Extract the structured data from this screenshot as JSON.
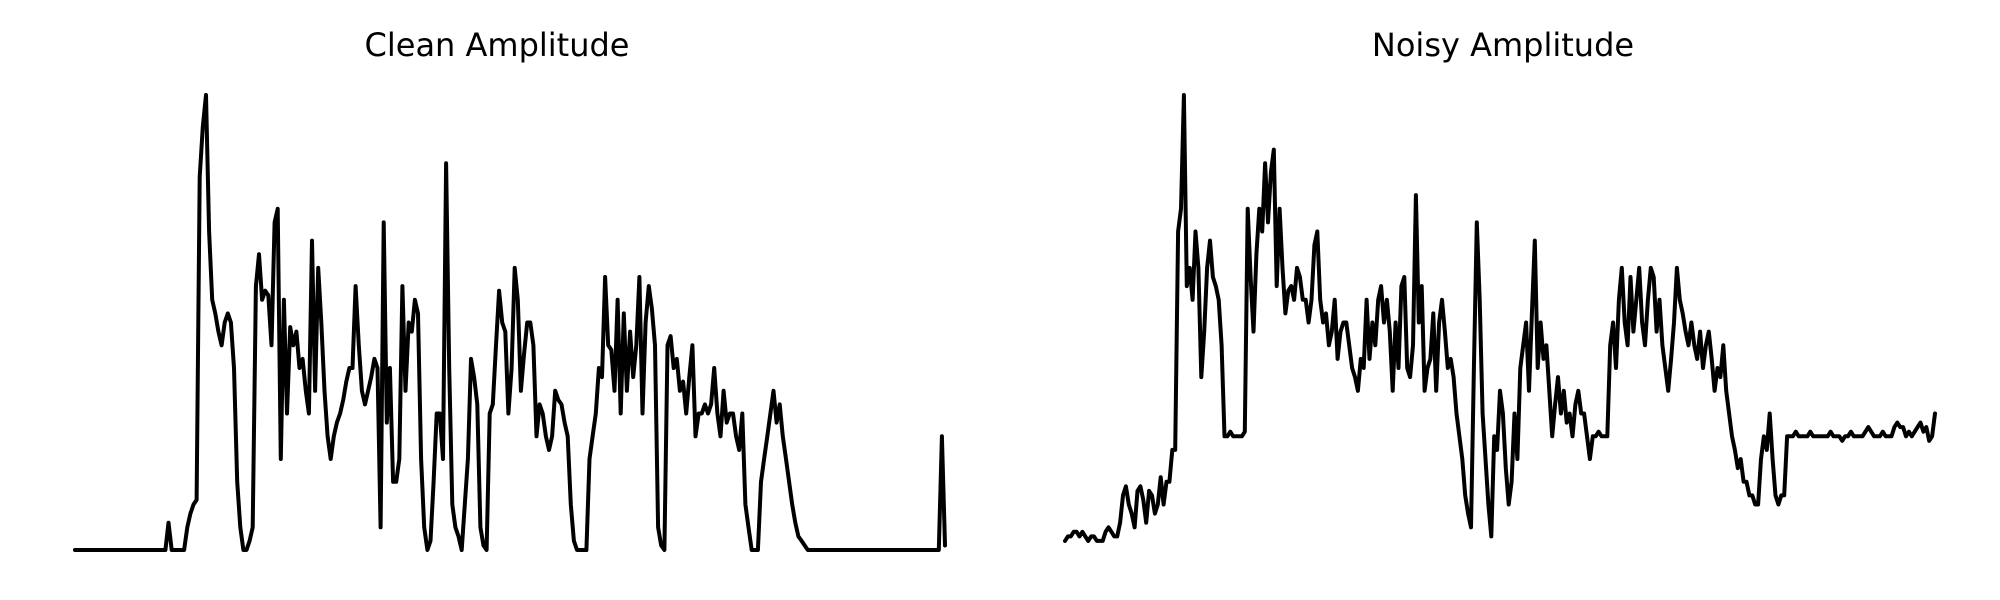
{
  "chart_data": [
    {
      "type": "line",
      "title": "Clean Amplitude",
      "xlabel": "",
      "ylabel": "",
      "axes_visible": false,
      "grid": false,
      "color": "#000000",
      "ylim": [
        0,
        1.0
      ],
      "x_step": 1,
      "series": [
        {
          "values": [
            0,
            0,
            0,
            0,
            0,
            0,
            0,
            0,
            0,
            0,
            0,
            0,
            0,
            0,
            0,
            0,
            0,
            0,
            0,
            0,
            0,
            0,
            0,
            0,
            0,
            0,
            0,
            0,
            0,
            0,
            0.06,
            0,
            0,
            0,
            0,
            0,
            0.05,
            0.08,
            0.1,
            0.11,
            0.82,
            0.93,
            1.0,
            0.7,
            0.55,
            0.52,
            0.48,
            0.45,
            0.5,
            0.52,
            0.5,
            0.4,
            0.15,
            0.05,
            0,
            0,
            0.02,
            0.05,
            0.58,
            0.65,
            0.55,
            0.57,
            0.56,
            0.45,
            0.72,
            0.75,
            0.2,
            0.55,
            0.3,
            0.49,
            0.45,
            0.48,
            0.4,
            0.42,
            0.35,
            0.3,
            0.68,
            0.35,
            0.62,
            0.5,
            0.35,
            0.25,
            0.2,
            0.25,
            0.28,
            0.3,
            0.33,
            0.37,
            0.4,
            0.4,
            0.58,
            0.45,
            0.35,
            0.32,
            0.35,
            0.38,
            0.42,
            0.4,
            0.05,
            0.72,
            0.28,
            0.4,
            0.15,
            0.15,
            0.2,
            0.58,
            0.35,
            0.5,
            0.48,
            0.55,
            0.52,
            0.2,
            0.05,
            0,
            0.02,
            0.15,
            0.3,
            0.3,
            0.2,
            0.85,
            0.4,
            0.1,
            0.05,
            0.03,
            0,
            0.1,
            0.2,
            0.42,
            0.38,
            0.32,
            0.05,
            0.01,
            0,
            0.3,
            0.32,
            0.45,
            0.57,
            0.5,
            0.48,
            0.3,
            0.4,
            0.62,
            0.55,
            0.35,
            0.43,
            0.5,
            0.5,
            0.45,
            0.25,
            0.32,
            0.3,
            0.25,
            0.22,
            0.25,
            0.35,
            0.33,
            0.32,
            0.28,
            0.25,
            0.1,
            0.02,
            0,
            0,
            0,
            0,
            0.2,
            0.25,
            0.3,
            0.4,
            0.38,
            0.6,
            0.45,
            0.44,
            0.35,
            0.55,
            0.3,
            0.52,
            0.35,
            0.48,
            0.38,
            0.45,
            0.6,
            0.3,
            0.5,
            0.58,
            0.53,
            0.45,
            0.05,
            0.01,
            0,
            0.45,
            0.47,
            0.4,
            0.42,
            0.35,
            0.37,
            0.3,
            0.38,
            0.45,
            0.25,
            0.3,
            0.3,
            0.32,
            0.3,
            0.32,
            0.4,
            0.3,
            0.25,
            0.35,
            0.28,
            0.3,
            0.3,
            0.25,
            0.22,
            0.3,
            0.1,
            0.05,
            0,
            0,
            0,
            0.15,
            0.2,
            0.25,
            0.3,
            0.35,
            0.28,
            0.32,
            0.25,
            0.2,
            0.15,
            0.1,
            0.06,
            0.03,
            0.02,
            0.01,
            0,
            0,
            0,
            0,
            0,
            0,
            0,
            0,
            0,
            0,
            0,
            0,
            0,
            0,
            0,
            0,
            0,
            0,
            0,
            0,
            0,
            0,
            0,
            0,
            0,
            0,
            0,
            0,
            0,
            0,
            0,
            0,
            0,
            0,
            0,
            0,
            0,
            0,
            0,
            0,
            0,
            0,
            0,
            0.25,
            0.01
          ]
        }
      ]
    },
    {
      "type": "line",
      "title": "Noisy Amplitude",
      "xlabel": "",
      "ylabel": "",
      "axes_visible": false,
      "grid": false,
      "color": "#000000",
      "ylim": [
        0,
        1.0
      ],
      "x_step": 1,
      "series": [
        {
          "values": [
            0.02,
            0.03,
            0.03,
            0.04,
            0.04,
            0.03,
            0.04,
            0.03,
            0.02,
            0.03,
            0.03,
            0.02,
            0.02,
            0.02,
            0.04,
            0.05,
            0.04,
            0.03,
            0.03,
            0.06,
            0.12,
            0.14,
            0.1,
            0.08,
            0.05,
            0.13,
            0.14,
            0.11,
            0.06,
            0.13,
            0.12,
            0.08,
            0.1,
            0.16,
            0.1,
            0.15,
            0.15,
            0.22,
            0.22,
            0.7,
            0.75,
            1.0,
            0.58,
            0.62,
            0.55,
            0.7,
            0.62,
            0.38,
            0.48,
            0.62,
            0.68,
            0.6,
            0.58,
            0.55,
            0.45,
            0.25,
            0.25,
            0.26,
            0.25,
            0.25,
            0.25,
            0.25,
            0.26,
            0.75,
            0.6,
            0.48,
            0.65,
            0.75,
            0.7,
            0.85,
            0.72,
            0.83,
            0.88,
            0.58,
            0.75,
            0.62,
            0.52,
            0.57,
            0.58,
            0.55,
            0.62,
            0.6,
            0.55,
            0.55,
            0.5,
            0.55,
            0.67,
            0.7,
            0.55,
            0.5,
            0.52,
            0.45,
            0.48,
            0.55,
            0.42,
            0.48,
            0.5,
            0.5,
            0.45,
            0.4,
            0.38,
            0.35,
            0.42,
            0.4,
            0.55,
            0.42,
            0.5,
            0.45,
            0.55,
            0.58,
            0.5,
            0.55,
            0.48,
            0.35,
            0.5,
            0.4,
            0.58,
            0.6,
            0.4,
            0.38,
            0.45,
            0.78,
            0.5,
            0.58,
            0.35,
            0.4,
            0.42,
            0.52,
            0.35,
            0.5,
            0.55,
            0.48,
            0.4,
            0.42,
            0.38,
            0.3,
            0.25,
            0.2,
            0.12,
            0.08,
            0.05,
            0.4,
            0.72,
            0.55,
            0.3,
            0.2,
            0.1,
            0.03,
            0.25,
            0.22,
            0.35,
            0.3,
            0.18,
            0.1,
            0.15,
            0.3,
            0.2,
            0.4,
            0.45,
            0.5,
            0.35,
            0.52,
            0.68,
            0.4,
            0.5,
            0.42,
            0.45,
            0.35,
            0.25,
            0.32,
            0.38,
            0.3,
            0.35,
            0.28,
            0.3,
            0.25,
            0.32,
            0.35,
            0.3,
            0.3,
            0.25,
            0.2,
            0.25,
            0.25,
            0.26,
            0.25,
            0.25,
            0.25,
            0.45,
            0.5,
            0.4,
            0.55,
            0.62,
            0.5,
            0.45,
            0.6,
            0.48,
            0.55,
            0.62,
            0.5,
            0.45,
            0.55,
            0.62,
            0.6,
            0.48,
            0.55,
            0.45,
            0.4,
            0.35,
            0.42,
            0.5,
            0.62,
            0.55,
            0.52,
            0.48,
            0.45,
            0.5,
            0.45,
            0.42,
            0.48,
            0.4,
            0.45,
            0.48,
            0.42,
            0.35,
            0.4,
            0.38,
            0.45,
            0.35,
            0.3,
            0.25,
            0.22,
            0.18,
            0.2,
            0.15,
            0.15,
            0.12,
            0.12,
            0.1,
            0.1,
            0.2,
            0.25,
            0.22,
            0.3,
            0.2,
            0.12,
            0.1,
            0.12,
            0.12,
            0.25,
            0.25,
            0.25,
            0.26,
            0.25,
            0.25,
            0.25,
            0.25,
            0.26,
            0.25,
            0.25,
            0.25,
            0.25,
            0.25,
            0.25,
            0.26,
            0.25,
            0.25,
            0.25,
            0.24,
            0.25,
            0.25,
            0.26,
            0.25,
            0.25,
            0.25,
            0.25,
            0.26,
            0.27,
            0.26,
            0.25,
            0.25,
            0.25,
            0.26,
            0.25,
            0.25,
            0.25,
            0.27,
            0.28,
            0.27,
            0.27,
            0.25,
            0.26,
            0.25,
            0.26,
            0.27,
            0.28,
            0.26,
            0.27,
            0.24,
            0.25,
            0.3
          ]
        }
      ]
    }
  ]
}
